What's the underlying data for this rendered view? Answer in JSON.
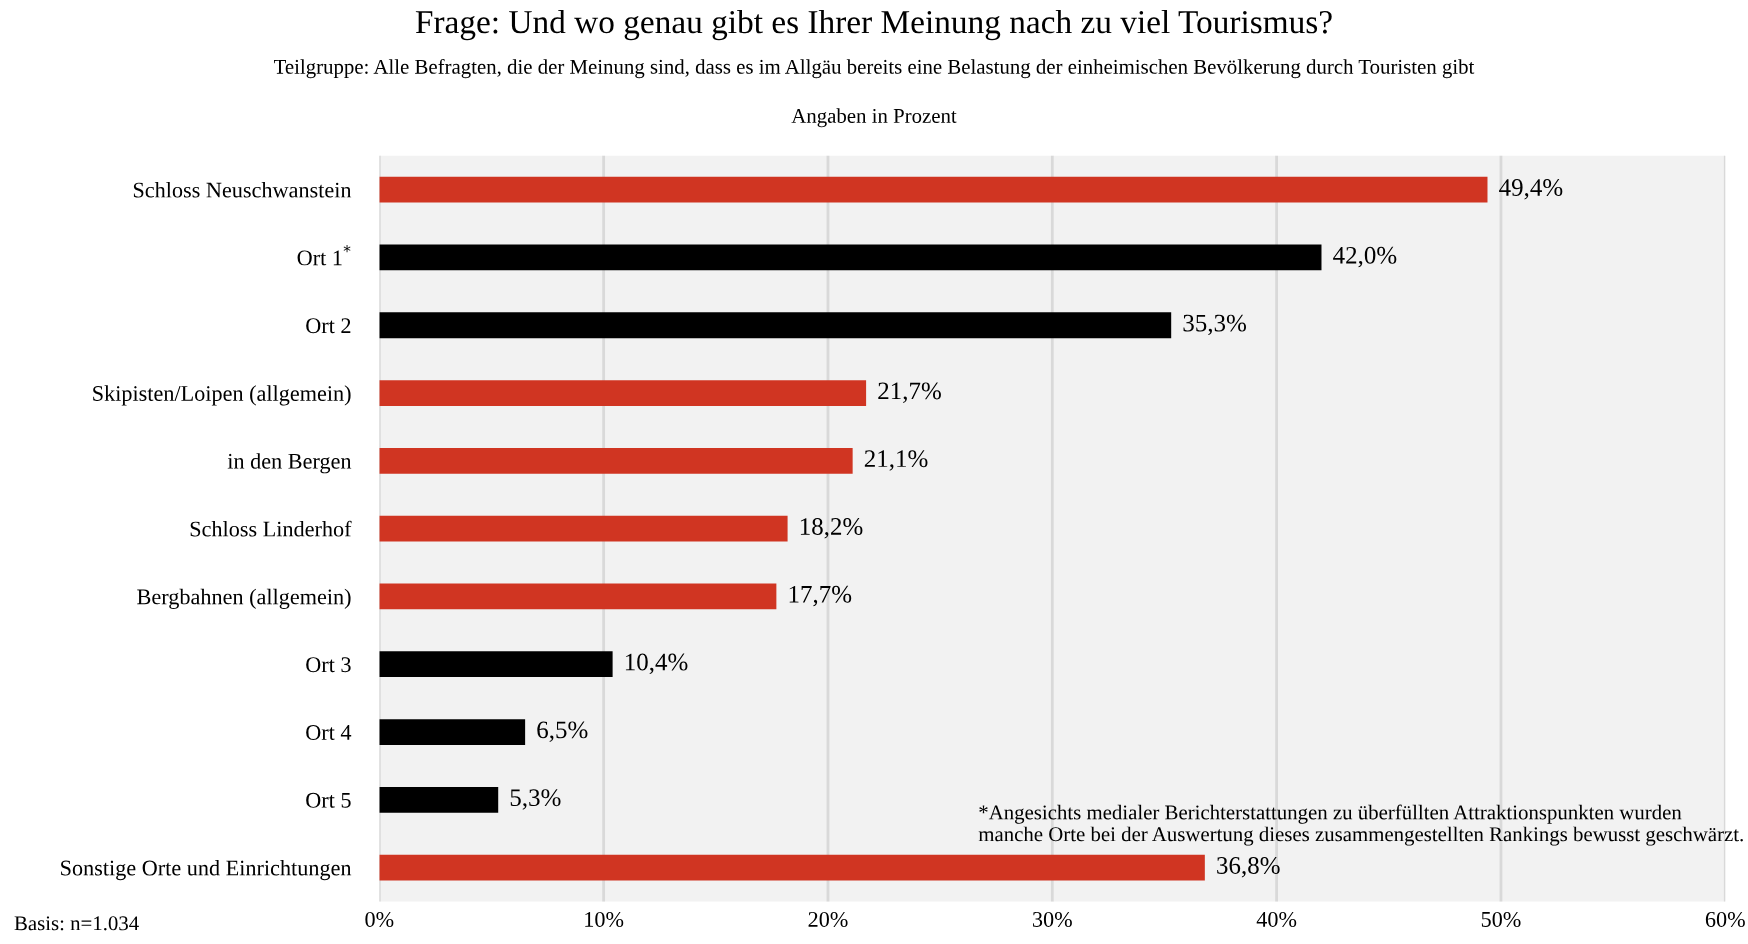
{
  "chart_data": {
    "type": "bar",
    "orientation": "horizontal",
    "title": "Frage: Und wo genau gibt es Ihrer Meinung nach zu viel Tourismus?",
    "subtitle": "Teilgruppe: Alle Befragten, die der Meinung sind, dass es im Allgäu bereits eine Belastung der einheimischen Bevölkerung durch Touristen gibt",
    "xlabel": "Angaben in Prozent",
    "categories": [
      "Schloss Neuschwanstein",
      "Ort 1$^{*}$",
      "Ort 2",
      "Skipisten/Loipen (allgemein)",
      "in den Bergen",
      "Schloss Linderhof",
      "Bergbahnen (allgemein)",
      "Ort 3",
      "Ort 4",
      "Ort 5",
      "Sonstige Orte und Einrichtungen"
    ],
    "values": [
      49.4,
      42.0,
      35.3,
      21.7,
      21.1,
      18.2,
      17.7,
      10.4,
      6.5,
      5.3,
      36.8
    ],
    "colors": [
      "#d03522",
      "#000000",
      "#000000",
      "#d03522",
      "#d03522",
      "#d03522",
      "#d03522",
      "#000000",
      "#000000",
      "#000000",
      "#d03522"
    ],
    "value_labels": [
      "49,4%",
      "42,0%",
      "35,3%",
      "21,7%",
      "21,1%",
      "18,2%",
      "17,7%",
      "10,4%",
      "6,5%",
      "5,3%",
      "36,8%"
    ],
    "xlim": [
      0,
      60
    ],
    "xticks": [
      {
        "value": 0,
        "label": "0%"
      },
      {
        "value": 10,
        "label": "10%"
      },
      {
        "value": 20,
        "label": "20%"
      },
      {
        "value": 30,
        "label": "30%"
      },
      {
        "value": 40,
        "label": "40%"
      },
      {
        "value": 50,
        "label": "50%"
      },
      {
        "value": 60,
        "label": "60%"
      }
    ],
    "grid": "x",
    "legend": false,
    "annotations": [
      "*Angesichts medialer Berichterstattungen zu überfüllten Attraktionspunkten wurden\nmanche Orte bei der Auswertung dieses zusammengestellten Rankings bewusst geschwärzt.",
      "Basis: n=1.034"
    ]
  }
}
